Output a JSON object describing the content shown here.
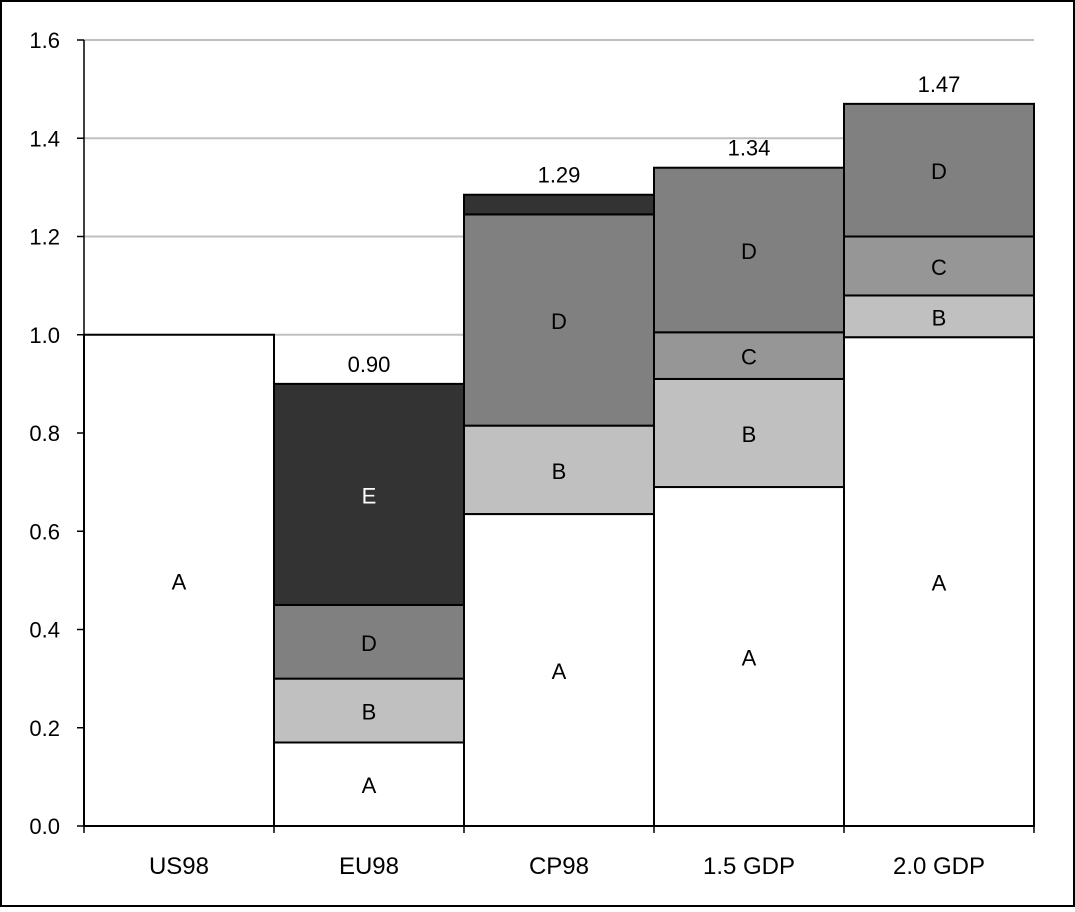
{
  "chart_data": {
    "type": "bar",
    "stacked": true,
    "categories": [
      "US98",
      "EU98",
      "CP98",
      "1.5 GDP",
      "2.0 GDP"
    ],
    "ylim": [
      0,
      1.6
    ],
    "yticks": [
      "0.0",
      "0.2",
      "0.4",
      "0.6",
      "0.8",
      "1.0",
      "1.2",
      "1.4",
      "1.6"
    ],
    "grid": true,
    "legend": "none",
    "title": "",
    "xlabel": "",
    "ylabel": "",
    "bars": [
      {
        "category": "US98",
        "total_label": "",
        "segments": [
          {
            "label": "A",
            "value": 1.0,
            "color": "#ffffff"
          }
        ]
      },
      {
        "category": "EU98",
        "total_label": "0.90",
        "segments": [
          {
            "label": "A",
            "value": 0.17,
            "color": "#ffffff"
          },
          {
            "label": "B",
            "value": 0.13,
            "color": "#c0c0c0"
          },
          {
            "label": "D",
            "value": 0.15,
            "color": "#808080"
          },
          {
            "label": "E",
            "value": 0.45,
            "color": "#333333"
          }
        ]
      },
      {
        "category": "CP98",
        "total_label": "1.29",
        "segments": [
          {
            "label": "A",
            "value": 0.635,
            "color": "#ffffff"
          },
          {
            "label": "B",
            "value": 0.18,
            "color": "#c0c0c0"
          },
          {
            "label": "D",
            "value": 0.43,
            "color": "#808080"
          },
          {
            "label": "",
            "value": 0.04,
            "color": "#333333"
          }
        ]
      },
      {
        "category": "1.5 GDP",
        "total_label": "1.34",
        "segments": [
          {
            "label": "A",
            "value": 0.69,
            "color": "#ffffff"
          },
          {
            "label": "B",
            "value": 0.22,
            "color": "#c0c0c0"
          },
          {
            "label": "C",
            "value": 0.095,
            "color": "#969696"
          },
          {
            "label": "D",
            "value": 0.335,
            "color": "#808080"
          }
        ]
      },
      {
        "category": "2.0 GDP",
        "total_label": "1.47",
        "segments": [
          {
            "label": "A",
            "value": 0.995,
            "color": "#ffffff"
          },
          {
            "label": "B",
            "value": 0.085,
            "color": "#c0c0c0"
          },
          {
            "label": "C",
            "value": 0.12,
            "color": "#969696"
          },
          {
            "label": "D",
            "value": 0.27,
            "color": "#808080"
          }
        ]
      }
    ]
  }
}
